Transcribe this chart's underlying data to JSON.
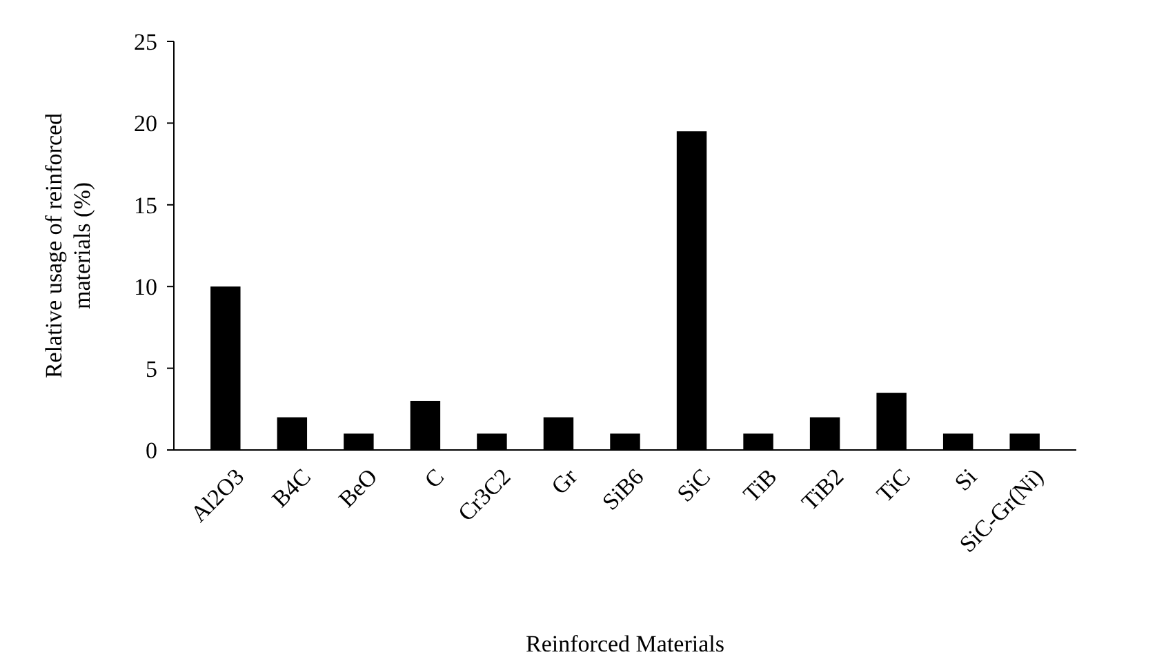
{
  "chart_data": {
    "type": "bar",
    "xlabel": "Reinforced Materials",
    "ylabel": "Relative usage of reinforced materials  (%)",
    "categories": [
      "Al2O3",
      "B4C",
      "BeO",
      "C",
      "Cr3C2",
      "Gr",
      "SiB6",
      "SiC",
      "TiB",
      "TiB2",
      "TiC",
      "Si",
      "SiC-Gr(Ni)"
    ],
    "values": [
      10,
      2,
      1,
      3,
      1,
      2,
      1,
      19.5,
      1,
      2,
      3.5,
      1,
      1
    ],
    "color": "#000000",
    "ylim": [
      0,
      25
    ],
    "yticks": [
      0,
      5,
      10,
      15,
      20,
      25
    ],
    "grid": false
  }
}
